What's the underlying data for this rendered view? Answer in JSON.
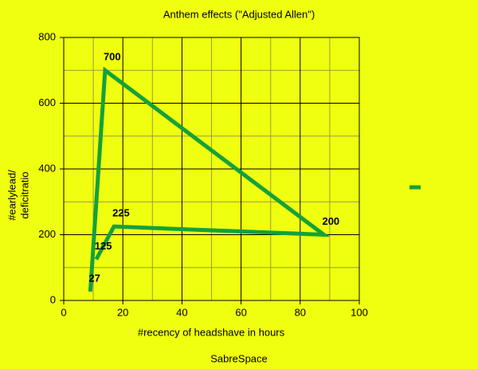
{
  "chart_data": {
    "type": "line",
    "title": "Anthem effects (\"Adjusted Allen\")",
    "xlabel": "#recency of headshave in hours",
    "ylabel": [
      "#earlylead/",
      "deficitratio"
    ],
    "caption": "SabreSpace",
    "x": [
      9,
      14,
      88,
      17,
      11
    ],
    "series": [
      {
        "color": "#13a23a",
        "values": [
          27,
          700,
          200,
          225,
          125
        ]
      }
    ],
    "xlim": [
      0,
      100
    ],
    "xticks": [
      0,
      20,
      40,
      60,
      80,
      100
    ],
    "ylim": [
      0,
      800
    ],
    "yticks": [
      0,
      200,
      400,
      600,
      800
    ],
    "grid": true,
    "minor_grid": true,
    "data_labels": true,
    "legend": "right"
  }
}
